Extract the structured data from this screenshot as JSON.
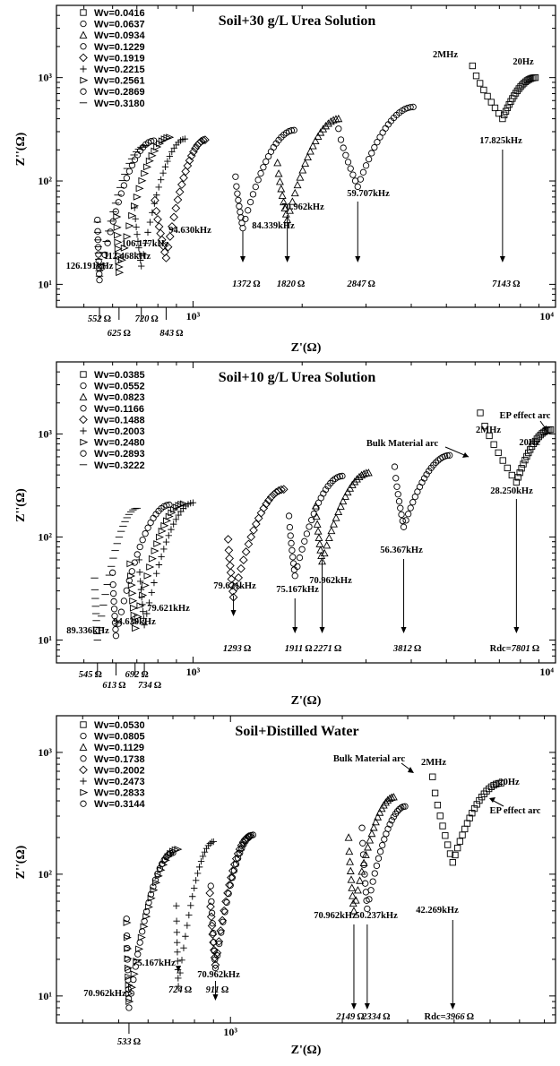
{
  "chart_data": [
    {
      "type": "scatter",
      "title": "Soil+30 g/L Urea Solution",
      "xlabel": "Z'(Ω)",
      "ylabel": "Z''(Ω)",
      "xscale": "log",
      "yscale": "log",
      "xlim": [
        420,
        10000
      ],
      "ylim": [
        6,
        5000
      ],
      "x_tick_labels": [
        "10³",
        "10⁴"
      ],
      "y_tick_labels": [
        "10¹",
        "10²",
        "10³"
      ],
      "legend_position": "top-left",
      "series": [
        {
          "name": "Wv=0.0416",
          "marker": "square",
          "vertex": [
            7143,
            400
          ],
          "left": [
            5900,
            1300
          ],
          "right": [
            8800,
            1000
          ]
        },
        {
          "name": "Wv=0.0637",
          "marker": "circle",
          "vertex": [
            2847,
            88
          ],
          "left": [
            2520,
            320
          ],
          "right": [
            4050,
            520
          ]
        },
        {
          "name": "Wv=0.0934",
          "marker": "triangle",
          "vertex": [
            1820,
            42
          ],
          "left": [
            1710,
            150
          ],
          "right": [
            2520,
            400
          ]
        },
        {
          "name": "Wv=0.1229",
          "marker": "circle",
          "vertex": [
            1372,
            35
          ],
          "left": [
            1310,
            110
          ],
          "right": [
            1900,
            310
          ]
        },
        {
          "name": "Wv=0.1919",
          "marker": "diamond",
          "vertex": [
            843,
            18
          ],
          "left": [
            785,
            65
          ],
          "right": [
            1080,
            250
          ]
        },
        {
          "name": "Wv=0.2215",
          "marker": "plus",
          "vertex": [
            720,
            15
          ],
          "left": [
            690,
            55
          ],
          "right": [
            950,
            255
          ]
        },
        {
          "name": "Wv=0.2561",
          "marker": "triangle-right",
          "vertex": [
            625,
            13
          ],
          "left": [
            615,
            45
          ],
          "right": [
            860,
            265
          ]
        },
        {
          "name": "Wv=0.2869",
          "marker": "circle",
          "vertex": [
            552,
            11
          ],
          "left": [
            545,
            42
          ],
          "right": [
            780,
            245
          ]
        },
        {
          "name": "Wv=0.3180",
          "marker": "dash",
          "vertex": [
            552,
            12
          ],
          "left": [
            545,
            40
          ],
          "right": [
            740,
            220
          ]
        }
      ],
      "annotations": {
        "freq_labels": [
          "126.191kHz",
          "112.468kHz",
          "106.177kHz",
          "94.630kHz",
          "84.339kHz",
          "70.962kHz",
          "59.707kHz",
          "17.825kHz",
          "2MHz",
          "20Hz"
        ],
        "rdc_values": [
          "1372",
          "1820",
          "2847",
          "7143"
        ],
        "bottom_values": [
          "552",
          "625",
          "720",
          "843"
        ],
        "ohm": "Ω"
      }
    },
    {
      "type": "scatter",
      "title": "Soil+10 g/L Urea Solution",
      "xlabel": "Z'(Ω)",
      "ylabel": "Z''(Ω)",
      "xscale": "log",
      "yscale": "log",
      "xlim": [
        420,
        10000
      ],
      "ylim": [
        6,
        5000
      ],
      "x_tick_labels": [
        "10³",
        "10⁴"
      ],
      "y_tick_labels": [
        "10¹",
        "10²",
        "10³"
      ],
      "legend_position": "top-left",
      "series": [
        {
          "name": "Wv=0.0385",
          "marker": "square",
          "vertex": [
            7801,
            340
          ],
          "left": [
            6200,
            1600
          ],
          "right": [
            9700,
            1100
          ]
        },
        {
          "name": "Wv=0.0552",
          "marker": "circle",
          "vertex": [
            3812,
            125
          ],
          "left": [
            3600,
            480
          ],
          "right": [
            5100,
            620
          ]
        },
        {
          "name": "Wv=0.0823",
          "marker": "triangle",
          "vertex": [
            2271,
            58
          ],
          "left": [
            2180,
            200
          ],
          "right": [
            3050,
            420
          ]
        },
        {
          "name": "Wv=0.1166",
          "marker": "circle",
          "vertex": [
            1911,
            42
          ],
          "left": [
            1840,
            160
          ],
          "right": [
            2580,
            390
          ]
        },
        {
          "name": "Wv=0.1488",
          "marker": "diamond",
          "vertex": [
            1293,
            26
          ],
          "left": [
            1250,
            95
          ],
          "right": [
            1780,
            290
          ]
        },
        {
          "name": "Wv=0.2003",
          "marker": "plus",
          "vertex": [
            734,
            14
          ],
          "left": [
            710,
            60
          ],
          "right": [
            1000,
            215
          ]
        },
        {
          "name": "Wv=0.2480",
          "marker": "triangle-right",
          "vertex": [
            692,
            13
          ],
          "left": [
            670,
            55
          ],
          "right": [
            940,
            210
          ]
        },
        {
          "name": "Wv=0.2893",
          "marker": "circle",
          "vertex": [
            613,
            11
          ],
          "left": [
            600,
            45
          ],
          "right": [
            860,
            205
          ]
        },
        {
          "name": "Wv=0.3222",
          "marker": "dash",
          "vertex": [
            545,
            10
          ],
          "left": [
            535,
            40
          ],
          "right": [
            700,
            190
          ]
        }
      ],
      "annotations": {
        "freq_labels": [
          "89.336kHz",
          "94.630kHz",
          "79.621kHz",
          "79.621kHz",
          "75.167kHz",
          "70.962kHz",
          "56.367kHz",
          "28.250kHz",
          "2MHz",
          "20Hz"
        ],
        "rdc_values": [
          "1293",
          "1911",
          "2271",
          "3812",
          "7801"
        ],
        "bottom_values": [
          "545",
          "613",
          "692",
          "734"
        ],
        "bulk_label": "Bulk Material arc",
        "ep_label": "EP effect arc",
        "rdc_prefix": "Rdc=",
        "ohm": "Ω"
      }
    },
    {
      "type": "scatter",
      "title": "Soil+Distilled Water",
      "xlabel": "Z'(Ω)",
      "ylabel": "Z''(Ω)",
      "xscale": "log",
      "yscale": "log",
      "xlim": [
        340,
        7500
      ],
      "ylim": [
        6,
        2000
      ],
      "x_tick_labels": [
        "10³"
      ],
      "y_tick_labels": [
        "10¹",
        "10²",
        "10³"
      ],
      "legend_position": "top-left",
      "series": [
        {
          "name": "Wv=0.0530",
          "marker": "square",
          "vertex": [
            3966,
            125
          ],
          "left": [
            3500,
            630
          ],
          "right": [
            5350,
            560
          ]
        },
        {
          "name": "Wv=0.0805",
          "marker": "circle",
          "vertex": [
            2334,
            52
          ],
          "left": [
            2260,
            240
          ],
          "right": [
            2950,
            360
          ]
        },
        {
          "name": "Wv=0.1129",
          "marker": "triangle",
          "vertex": [
            2149,
            50
          ],
          "left": [
            2080,
            200
          ],
          "right": [
            2750,
            430
          ]
        },
        {
          "name": "Wv=0.1738",
          "marker": "circle",
          "vertex": [
            911,
            17
          ],
          "left": [
            885,
            80
          ],
          "right": [
            1150,
            210
          ]
        },
        {
          "name": "Wv=0.2002",
          "marker": "diamond",
          "vertex": [
            911,
            18
          ],
          "left": [
            880,
            70
          ],
          "right": [
            1130,
            205
          ]
        },
        {
          "name": "Wv=0.2473",
          "marker": "plus",
          "vertex": [
            724,
            12
          ],
          "left": [
            715,
            55
          ],
          "right": [
            900,
            185
          ]
        },
        {
          "name": "Wv=0.2833",
          "marker": "triangle-right",
          "vertex": [
            533,
            9
          ],
          "left": [
            525,
            40
          ],
          "right": [
            720,
            160
          ]
        },
        {
          "name": "Wv=0.3144",
          "marker": "circle",
          "vertex": [
            533,
            8
          ],
          "left": [
            525,
            43
          ],
          "right": [
            700,
            150
          ]
        }
      ],
      "annotations": {
        "freq_labels": [
          "70.962kHz",
          "75.167kHz",
          "70.962kHz",
          "70.962kHz",
          "50.237kHz",
          "42.269kHz",
          "2MHz",
          "20Hz"
        ],
        "rdc_values": [
          "2149",
          "2334",
          "3966"
        ],
        "bottom_values": [
          "533",
          "724",
          "911"
        ],
        "bulk_label": "Bulk Material arc",
        "ep_label": "EP effect arc",
        "rdc_prefix": "Rdc=",
        "ohm": "Ω"
      }
    }
  ]
}
